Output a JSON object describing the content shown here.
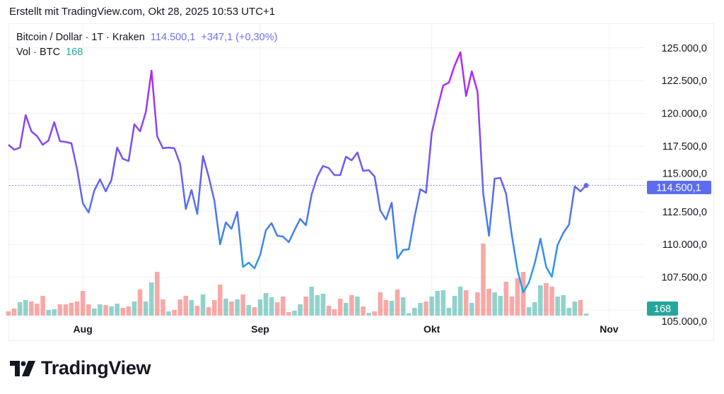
{
  "header": {
    "created": "Erstellt mit TradingView.com, Okt 28, 2025 10:53 UTC+1"
  },
  "legend": {
    "symbol": "Bitcoin / Dollar · 1T · Kraken",
    "price": "114.500,1",
    "change": "+347,1 (+0,30%)",
    "vol_label": "Vol · BTC",
    "vol_value": "168"
  },
  "price_badge": "114.500,1",
  "volume_badge": "168",
  "logo": {
    "text": "TradingView"
  },
  "colors": {
    "up": "#26a69a",
    "down": "#ef5350",
    "line_top": "#c21cf4",
    "line_mid": "#6a5df2",
    "line_bottom": "#1aa5ee",
    "last_price": "#5c6cf0"
  },
  "chart_data": {
    "type": "line",
    "interval": "1 day",
    "x_range": [
      "2025-07-19",
      "2025-10-28"
    ],
    "x_tick_labels": [
      {
        "label": "Aug",
        "date": "2025-08-01"
      },
      {
        "label": "Sep",
        "date": "2025-09-01"
      },
      {
        "label": "Okt",
        "date": "2025-10-01"
      },
      {
        "label": "Nov",
        "date": "2025-11-01"
      }
    ],
    "y_tick_labels": [
      {
        "label": "125.000,0",
        "value": 125000
      },
      {
        "label": "122.500,0",
        "value": 122500
      },
      {
        "label": "120.000,0",
        "value": 120000
      },
      {
        "label": "117.500,0",
        "value": 117500
      },
      {
        "label": "115.000,0",
        "value": 115000
      },
      {
        "label": "112.500,0",
        "value": 112500
      },
      {
        "label": "110.000,0",
        "value": 110000
      },
      {
        "label": "107.500,0",
        "value": 107500
      },
      {
        "label": "105.000,0",
        "value": 105000
      }
    ],
    "ylim": [
      105000,
      125000
    ],
    "grid": true,
    "last_price": 114500.1,
    "series": [
      {
        "name": "Bitcoin / Dollar",
        "values": [
          117608,
          117231,
          117392,
          119871,
          118632,
          118254,
          117608,
          117931,
          119332,
          117878,
          117824,
          117716,
          115722,
          113136,
          112435,
          114106,
          114968,
          114052,
          114914,
          117392,
          116530,
          116369,
          119170,
          118632,
          120086,
          123265,
          118254,
          117339,
          117392,
          117339,
          116153,
          112705,
          114160,
          112328,
          116746,
          115183,
          113351,
          110011,
          111681,
          111196,
          112489,
          108287,
          108610,
          108179,
          109203,
          111088,
          111627,
          110657,
          110604,
          110173,
          111088,
          111951,
          111466,
          113836,
          115183,
          115992,
          115830,
          115291,
          115291,
          116692,
          116423,
          117016,
          115615,
          115668,
          115183,
          112597,
          111897,
          113190,
          108933,
          109580,
          109634,
          112112,
          114214,
          113944,
          118524,
          120410,
          122134,
          122350,
          123643,
          124666,
          121326,
          123211,
          121649,
          113867,
          110657,
          115022,
          115076,
          113867,
          110711,
          108017,
          106347,
          107101,
          108556,
          110442,
          108287,
          107532,
          109957,
          110873,
          111520,
          114429,
          114052,
          114500.1
        ]
      },
      {
        "name": "Vol · BTC",
        "type": "bar",
        "values": [
          336,
          560,
          1064,
          1232,
          1120,
          952,
          1568,
          448,
          504,
          896,
          896,
          1008,
          1120,
          1960,
          896,
          560,
          896,
          840,
          728,
          952,
          616,
          728,
          1120,
          2072,
          1120,
          2632,
          3472,
          1288,
          336,
          448,
          1288,
          1568,
          1232,
          784,
          1680,
          672,
          1232,
          2464,
          1344,
          1120,
          1288,
          1680,
          840,
          672,
          1288,
          1792,
          1456,
          1064,
          1512,
          280,
          392,
          896,
          1512,
          2296,
          1624,
          1736,
          784,
          504,
          1344,
          1008,
          1624,
          1512,
          728,
          224,
          336,
          1848,
          1232,
          1176,
          2072,
          1456,
          196,
          616,
          1008,
          1120,
          1512,
          1960,
          2016,
          616,
          1568,
          2296,
          2016,
          1008,
          1848,
          5712,
          2128,
          1848,
          1568,
          2688,
          1512,
          2968,
          3472,
          672,
          1064,
          2408,
          2576,
          2296,
          1512,
          1624,
          616,
          1120,
          1232,
          168
        ],
        "direction": [
          "down",
          "down",
          "up",
          "up",
          "down",
          "down",
          "down",
          "up",
          "up",
          "down",
          "down",
          "down",
          "down",
          "down",
          "down",
          "up",
          "up",
          "down",
          "up",
          "up",
          "down",
          "down",
          "up",
          "down",
          "up",
          "up",
          "down",
          "down",
          "up",
          "down",
          "down",
          "down",
          "up",
          "down",
          "up",
          "down",
          "down",
          "down",
          "up",
          "down",
          "up",
          "down",
          "up",
          "down",
          "up",
          "up",
          "up",
          "down",
          "down",
          "down",
          "up",
          "up",
          "down",
          "up",
          "up",
          "up",
          "down",
          "down",
          "down",
          "up",
          "down",
          "up",
          "down",
          "up",
          "down",
          "down",
          "down",
          "up",
          "down",
          "up",
          "up",
          "up",
          "up",
          "down",
          "up",
          "up",
          "up",
          "up",
          "up",
          "up",
          "down",
          "up",
          "down",
          "down",
          "down",
          "up",
          "up",
          "down",
          "down",
          "down",
          "down",
          "up",
          "up",
          "up",
          "down",
          "down",
          "up",
          "up",
          "up",
          "up",
          "down",
          "up"
        ]
      }
    ]
  }
}
